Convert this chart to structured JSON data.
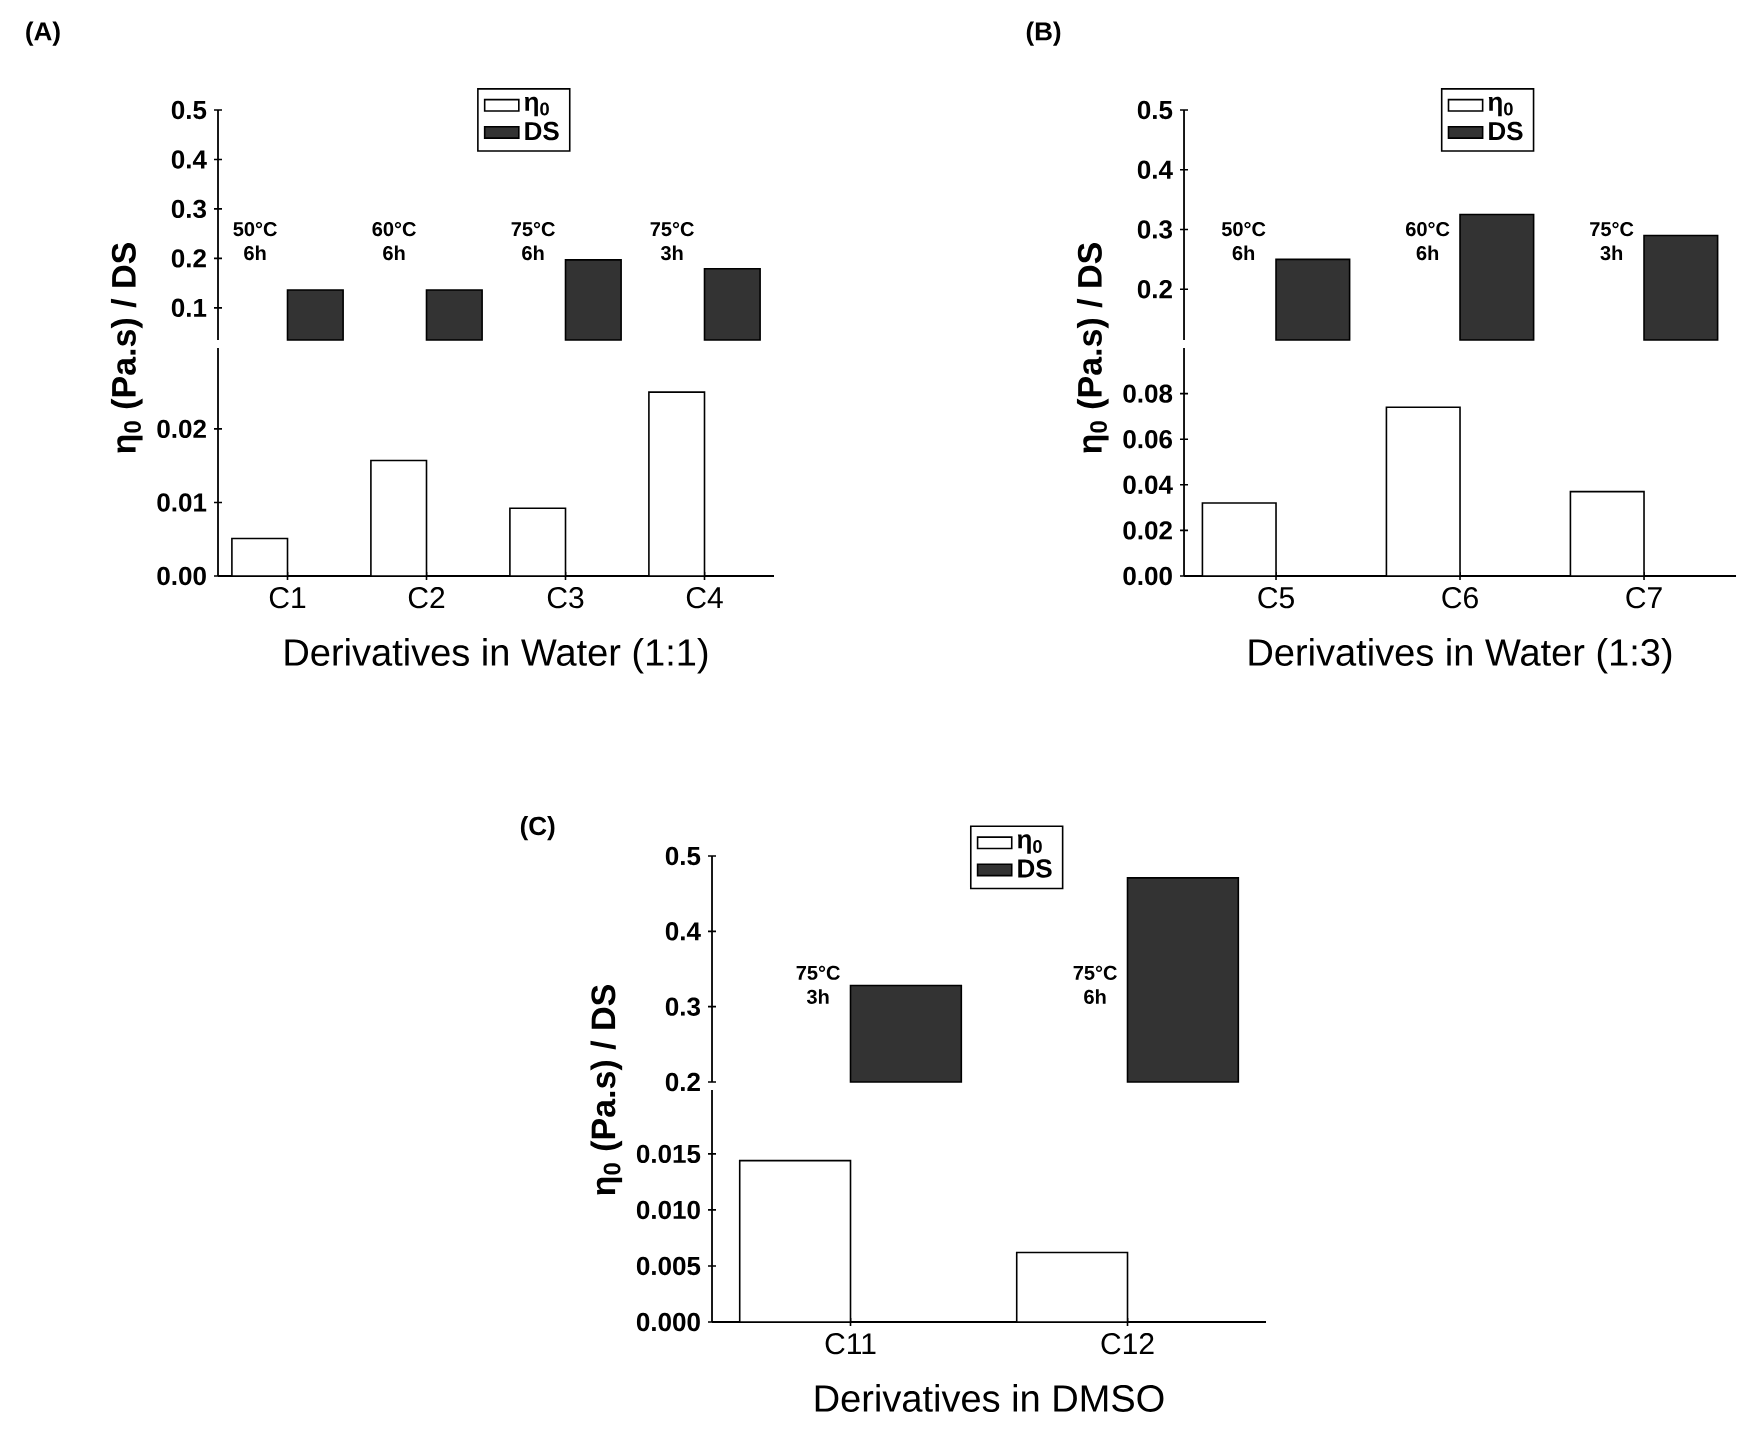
{
  "chart_data": [
    {
      "type": "bar",
      "title": "(A)",
      "categories": [
        null,
        null,
        null,
        null
      ],
      "series": [
        {
          "color": "#333333",
          "values": [
            0.136,
            0.136,
            0.197,
            0.179
          ]
        }
      ],
      "ylim": [
        0.035,
        0.5
      ],
      "yticks": [
        0.1,
        0.2,
        0.3,
        0.4,
        0.5
      ],
      "tick_labels": "y",
      "annotations": [
        "50°C 6h",
        "60°C 6h",
        "75°C 6h",
        "75°C 3h"
      ]
    },
    {
      "type": "bar",
      "xlabel": "Derivatives in Water (1:1)",
      "ylabel": "η$_{0}$ (Pa.s) / DS",
      "categories": [
        "C1",
        "C2",
        "C3",
        "C4"
      ],
      "series": [
        {
          "name": "η$_{0}$",
          "color": "#ffffff",
          "values": [
            0.0051,
            0.0157,
            0.0092,
            0.025
          ]
        },
        {
          "name": "DS",
          "color": "#333333",
          "values": [
            null,
            null,
            null,
            null
          ]
        }
      ],
      "ylim": [
        0,
        0.031
      ],
      "yticks": [
        {
          "value": 0,
          "label": "0.00"
        },
        0.01,
        0.02
      ],
      "legend": "top"
    },
    {
      "type": "bar",
      "title": "(B)",
      "categories": [
        null,
        null,
        null
      ],
      "series": [
        {
          "color": "#333333",
          "values": [
            0.25,
            0.325,
            0.29
          ]
        }
      ],
      "ylim": [
        0.115,
        0.5
      ],
      "yticks": [
        0.2,
        0.3,
        0.4,
        0.5
      ],
      "tick_labels": "y",
      "annotations": [
        "50°C 6h",
        "60°C 6h",
        "75°C 3h"
      ]
    },
    {
      "type": "bar",
      "xlabel": "Derivatives in Water (1:3)",
      "ylabel": "η$_{0}$ (Pa.s) / DS",
      "categories": [
        "C5",
        "C6",
        "C7"
      ],
      "series": [
        {
          "name": "η$_{0}$",
          "color": "#ffffff",
          "values": [
            0.032,
            0.074,
            0.037
          ]
        },
        {
          "name": "DS",
          "color": "#333333",
          "values": [
            null,
            null,
            null
          ]
        }
      ],
      "ylim": [
        0,
        0.1
      ],
      "yticks": [
        {
          "value": 0,
          "label": "0.00"
        },
        0.02,
        0.04,
        0.06,
        0.08
      ],
      "legend": "top"
    },
    {
      "type": "bar",
      "title": "(C)",
      "categories": [
        null,
        null
      ],
      "series": [
        {
          "color": "#333333",
          "values": [
            0.328,
            0.471
          ]
        }
      ],
      "ylim": [
        0.2,
        0.5
      ],
      "yticks": [
        0.2,
        0.3,
        0.4,
        0.5
      ],
      "tick_labels": "y",
      "annotations": [
        "75°C 3h",
        "75°C 6h"
      ]
    },
    {
      "type": "bar",
      "xlabel": "Derivatives in DMSO",
      "ylabel": "η$_{0}$ (Pa.s) / DS",
      "categories": [
        "C11",
        "C12"
      ],
      "series": [
        {
          "name": "η$_{0}$",
          "color": "#ffffff",
          "values": [
            0.0144,
            0.0062
          ]
        },
        {
          "name": "DS",
          "color": "#333333",
          "values": [
            null,
            null
          ]
        }
      ],
      "ylim": [
        0,
        0.0207
      ],
      "yticks": [
        {
          "value": 0,
          "label": "0.000"
        },
        {
          "value": 0.005,
          "label": "0.005"
        },
        {
          "value": 0.01,
          "label": "0.010"
        },
        {
          "value": 0.015,
          "label": "0.015"
        }
      ],
      "legend": "top"
    }
  ]
}
